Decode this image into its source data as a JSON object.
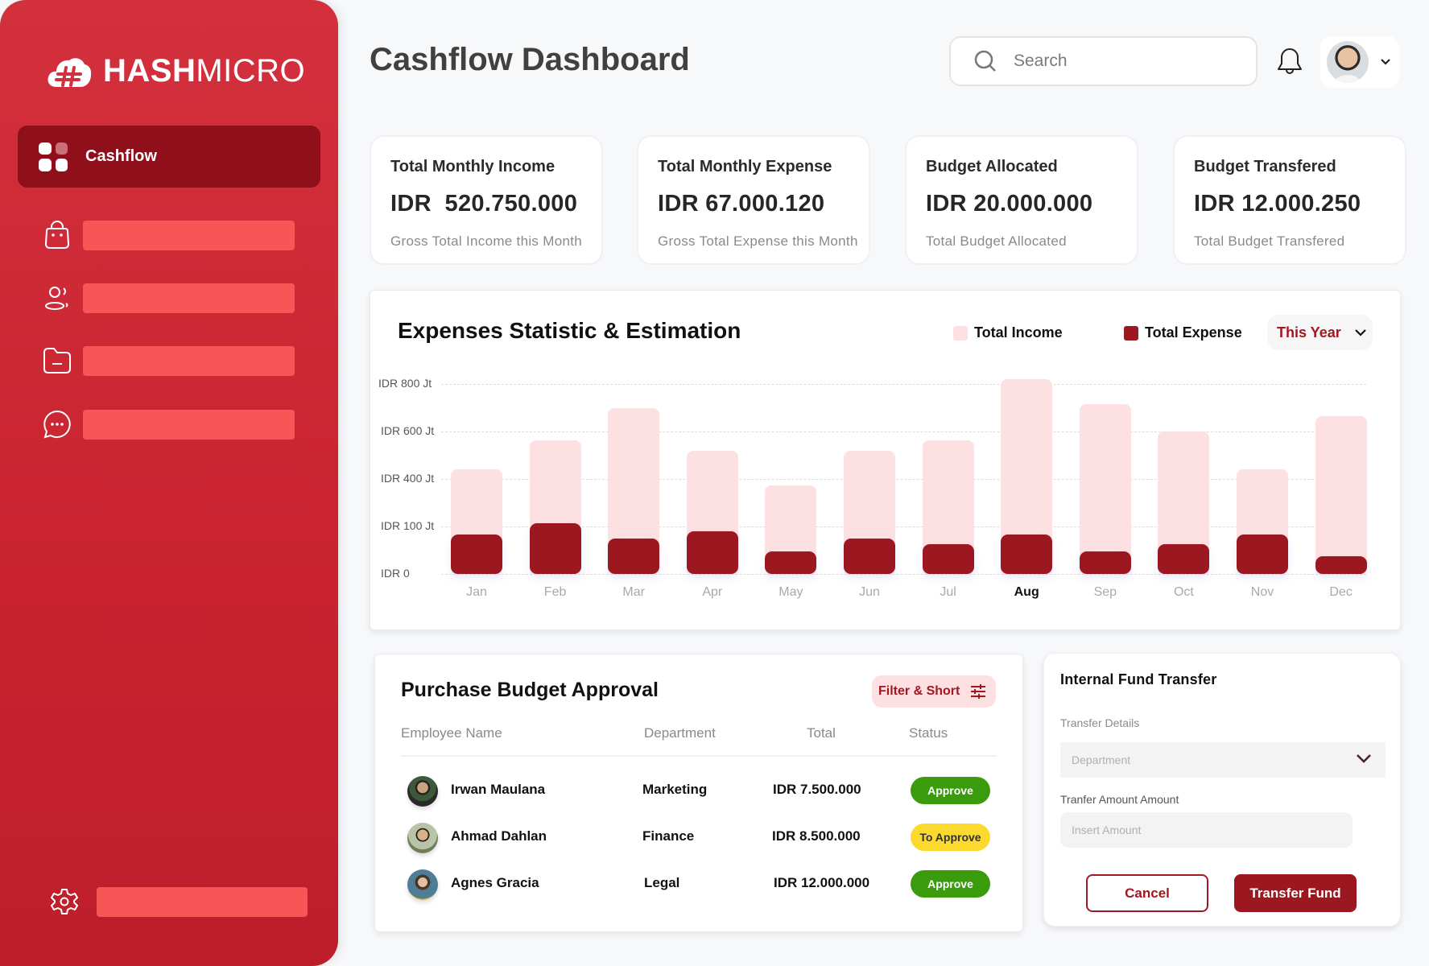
{
  "brand": {
    "logo_bold": "HASH",
    "logo_light": "MICRO",
    "logo_icon": "hash-cloud-icon"
  },
  "sidebar": {
    "active_item": {
      "label": "Cashflow",
      "icon": "grid-icon"
    },
    "items": [
      {
        "icon": "shopping-bag-icon",
        "label": ""
      },
      {
        "icon": "users-icon",
        "label": ""
      },
      {
        "icon": "folder-icon",
        "label": ""
      },
      {
        "icon": "chat-bubble-icon",
        "label": ""
      }
    ],
    "settings": {
      "icon": "gear-icon",
      "label": ""
    }
  },
  "header": {
    "title": "Cashflow Dashboard",
    "search_placeholder": "Search",
    "notification_icon": "bell-icon",
    "profile_menu_icon": "chevron-down-icon"
  },
  "stats": [
    {
      "title": "Total Monthly Income",
      "value": "IDR  520.750.000",
      "subtitle": "Gross Total Income this Month"
    },
    {
      "title": "Total Monthly Expense",
      "value": "IDR 67.000.120",
      "subtitle": "Gross Total Expense this Month"
    },
    {
      "title": "Budget Allocated",
      "value": "IDR 20.000.000",
      "subtitle": "Total Budget Allocated"
    },
    {
      "title": "Budget Transfered",
      "value": "IDR 12.000.250",
      "subtitle": "Total Budget Transfered"
    }
  ],
  "chart_panel": {
    "title": "Expenses Statistic & Estimation",
    "legend_income": "Total Income",
    "legend_expense": "Total Expense",
    "period": "This Year",
    "colors": {
      "income": "#fde0e2",
      "expense": "#9b1820"
    }
  },
  "chart_data": {
    "type": "bar",
    "title": "Expenses Statistic & Estimation",
    "xlabel": "",
    "ylabel": "",
    "categories": [
      "Jan",
      "Feb",
      "Mar",
      "Apr",
      "May",
      "Jun",
      "Jul",
      "Aug",
      "Sep",
      "Oct",
      "Nov",
      "Dec"
    ],
    "highlighted_category": "Aug",
    "series": [
      {
        "name": "Total Income",
        "unit": "IDR Jt",
        "values": [
          440,
          563,
          698,
          519,
          360,
          519,
          563,
          820,
          715,
          600,
          440,
          665
        ]
      },
      {
        "name": "Total Expense",
        "unit": "IDR Jt",
        "values": [
          83,
          120,
          74,
          90,
          47,
          74,
          62,
          83,
          47,
          62,
          83,
          38
        ]
      }
    ],
    "yticks": [
      "IDR 800 Jt",
      "IDR 600 Jt",
      "IDR 400 Jt",
      "IDR 100 Jt",
      "IDR 0"
    ],
    "ytick_values": [
      800,
      600,
      400,
      100,
      0
    ],
    "ylim": [
      0,
      850
    ],
    "grid": true,
    "legend_position": "top-right",
    "overlay": true
  },
  "approval": {
    "title": "Purchase Budget Approval",
    "filter_label": "Filter & Short",
    "filter_icon": "sliders-icon",
    "columns": [
      "Employee Name",
      "Department",
      "Total",
      "Status"
    ],
    "rows": [
      {
        "name": "Irwan Maulana",
        "department": "Marketing",
        "total": "IDR 7.500.000",
        "status": "Approve",
        "status_color": "#3a9c0c"
      },
      {
        "name": "Ahmad Dahlan",
        "department": "Finance",
        "total": "IDR 8.500.000",
        "status": "To Approve",
        "status_color": "#fbd92f"
      },
      {
        "name": "Agnes Gracia",
        "department": "Legal",
        "total": "IDR 12.000.000",
        "status": "Approve",
        "status_color": "#3a9c0c"
      }
    ]
  },
  "transfer": {
    "title": "Internal Fund Transfer",
    "details_label": "Transfer Details",
    "department_placeholder": "Department",
    "amount_label": "Tranfer Amount Amount",
    "amount_placeholder": "Insert Amount",
    "cancel_label": "Cancel",
    "submit_label": "Transfer Fund"
  }
}
